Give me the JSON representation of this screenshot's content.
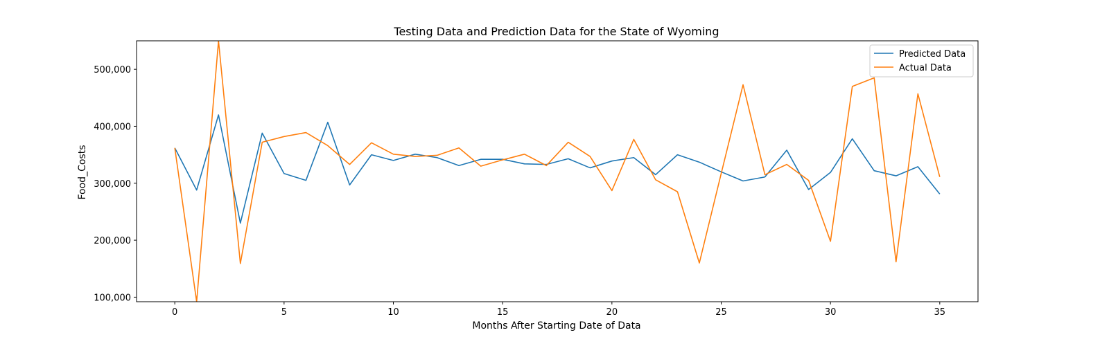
{
  "chart_data": {
    "type": "line",
    "title": "Testing Data and Prediction Data for the State of Wyoming",
    "xlabel": "Months After Starting Date of Data",
    "ylabel": "Food_Costs",
    "xlim": [
      -1.75,
      36.75
    ],
    "ylim": [
      92000,
      550000
    ],
    "xticks": [
      0,
      5,
      10,
      15,
      20,
      25,
      30,
      35
    ],
    "xtick_labels": [
      "0",
      "5",
      "10",
      "15",
      "20",
      "25",
      "30",
      "35"
    ],
    "yticks": [
      100000,
      200000,
      300000,
      400000,
      500000
    ],
    "ytick_labels": [
      "100,000",
      "200,000",
      "300,000",
      "400,000",
      "500,000"
    ],
    "grid": false,
    "legend_position": "top-right",
    "x": [
      0,
      1,
      2,
      3,
      4,
      5,
      6,
      7,
      8,
      9,
      10,
      11,
      12,
      13,
      14,
      15,
      16,
      17,
      18,
      19,
      20,
      21,
      22,
      23,
      24,
      25,
      26,
      27,
      28,
      29,
      30,
      31,
      32,
      33,
      34,
      35
    ],
    "series": [
      {
        "name": "Predicted Data",
        "color": "#1f77b4",
        "values": [
          362000,
          288000,
          420000,
          230000,
          388000,
          317000,
          305000,
          407000,
          297000,
          350000,
          340000,
          351000,
          345000,
          331000,
          342000,
          342000,
          334000,
          333000,
          343000,
          327000,
          339000,
          345000,
          315000,
          350000,
          337000,
          320000,
          304000,
          311000,
          358000,
          289000,
          319000,
          378000,
          322000,
          313000,
          329000,
          281000
        ]
      },
      {
        "name": "Actual Data",
        "color": "#ff7f0e",
        "values": [
          362000,
          92000,
          550000,
          159000,
          372000,
          382000,
          389000,
          366000,
          333000,
          371000,
          351000,
          347000,
          349000,
          362000,
          330000,
          341000,
          351000,
          331000,
          372000,
          347000,
          287000,
          377000,
          306000,
          285000,
          160000,
          317000,
          473000,
          315000,
          333000,
          305000,
          198000,
          470000,
          485000,
          162000,
          457000,
          311000
        ]
      }
    ]
  }
}
